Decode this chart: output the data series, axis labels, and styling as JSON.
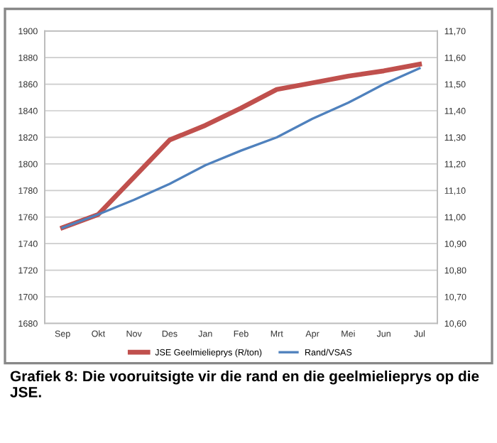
{
  "chart_data": {
    "type": "line",
    "title": "Grafiek 8: Die vooruitsigte vir die rand en die geelmielieprys op die JSE.",
    "categories": [
      "Sep",
      "Okt",
      "Nov",
      "Des",
      "Jan",
      "Feb",
      "Mrt",
      "Apr",
      "Mei",
      "Jun",
      "Jul"
    ],
    "series": [
      {
        "name": "JSE Geelmielieprys (R/ton)",
        "color": "#c0504d",
        "values": [
          1752,
          1762,
          1790,
          1818,
          1829,
          1842,
          1856,
          1861,
          1866,
          1870,
          1875
        ]
      },
      {
        "name": "Rand/VSAS",
        "color": "#4f81bd",
        "axis": "y2",
        "values": [
          10.96,
          11.01,
          11.065,
          11.125,
          11.195,
          11.25,
          11.3,
          11.37,
          11.43,
          11.5,
          11.56
        ]
      }
    ],
    "ylim": [
      1680,
      1900
    ],
    "yticks": [
      1680,
      1700,
      1720,
      1740,
      1760,
      1780,
      1800,
      1820,
      1840,
      1860,
      1880,
      1900
    ],
    "y2lim": [
      10.6,
      11.7
    ],
    "y2ticks": [
      {
        "value": 10.6,
        "label": "10,60"
      },
      {
        "value": 10.7,
        "label": "10,70"
      },
      {
        "value": 10.8,
        "label": "10,80"
      },
      {
        "value": 10.9,
        "label": "10,90"
      },
      {
        "value": 11.0,
        "label": "11,00"
      },
      {
        "value": 11.1,
        "label": "11,10"
      },
      {
        "value": 11.2,
        "label": "11,20"
      },
      {
        "value": 11.3,
        "label": "11,30"
      },
      {
        "value": 11.4,
        "label": "11,40"
      },
      {
        "value": 11.5,
        "label": "11,50"
      },
      {
        "value": 11.6,
        "label": "11,60"
      },
      {
        "value": 11.7,
        "label": "11,70"
      }
    ],
    "grid": "y",
    "legend": "bottom",
    "marker": "none",
    "line_style": "solid"
  }
}
